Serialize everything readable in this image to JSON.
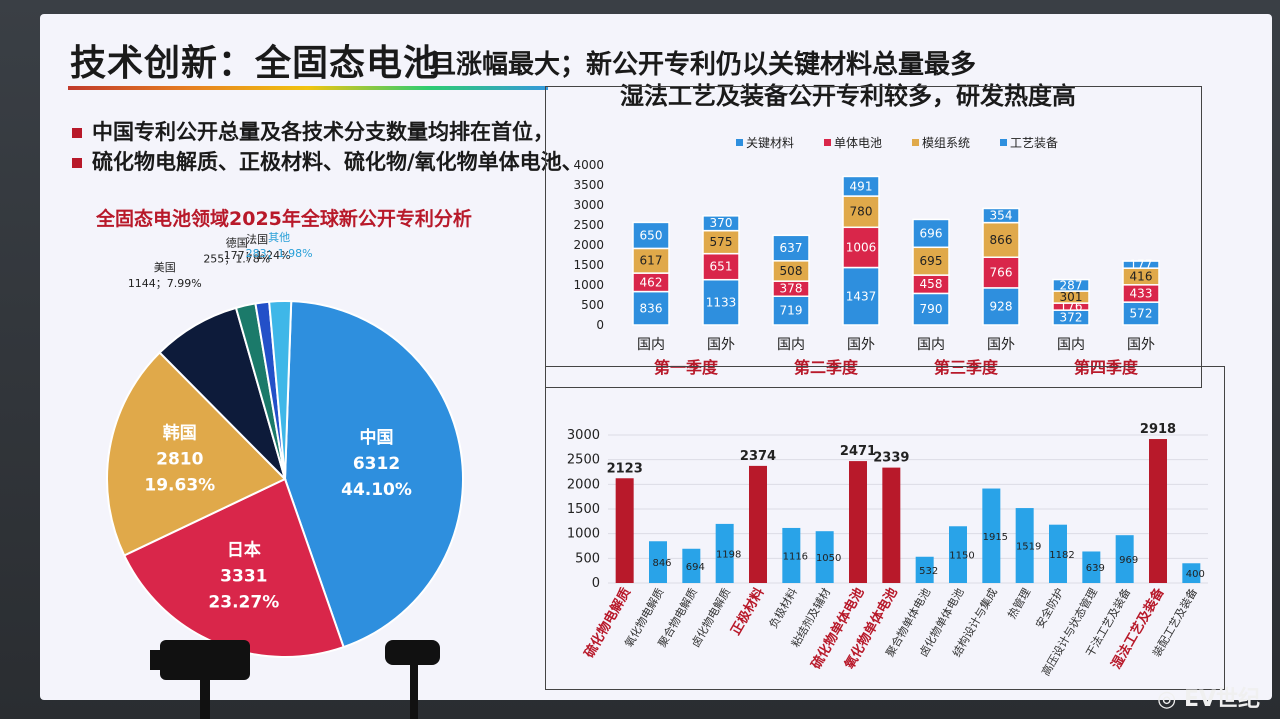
{
  "slide": {
    "title": "技术创新：全固态电池",
    "subtitle": "且涨幅最大；新公开专利仍以关键材料总量最多",
    "subtitle2": "湿法工艺及装备公开专利较多，研发热度高",
    "bullets": [
      "中国专利公开总量及各技术分支数量均排在首位，",
      "硫化物电解质、正极材料、硫化物/氧化物单体电池、"
    ]
  },
  "footer": {
    "watermark": "EV世纪"
  },
  "colors": {
    "accent_red": "#b8192a",
    "blue": "#2e8fde",
    "light_blue": "#29a3e8",
    "gold": "#e0a94a",
    "navy": "#0d1b3a"
  },
  "chart_data": [
    {
      "type": "pie",
      "title": "全固态电池领域2025年全球新公开专利分析",
      "slices": [
        {
          "label": "中国",
          "value": 6312,
          "percent": "44.10%",
          "color": "#2e8fde"
        },
        {
          "label": "日本",
          "value": 3331,
          "percent": "23.27%",
          "color": "#d9264a"
        },
        {
          "label": "韩国",
          "value": 2810,
          "percent": "19.63%",
          "color": "#e0a94a"
        },
        {
          "label": "美国",
          "value": 1144,
          "percent": "7.99%",
          "color": "#0d1b3a"
        },
        {
          "label": "德国",
          "value": 255,
          "percent": "1.78%",
          "color": "#1b7a6a"
        },
        {
          "label": "法国",
          "value": 177,
          "percent": "1.24%",
          "color": "#2350c8"
        },
        {
          "label": "其他",
          "value": 283,
          "percent": "1.98%",
          "color": "#3fb7e8"
        }
      ],
      "label_texts": {
        "中国": [
          "中国",
          "6312",
          "44.10%"
        ],
        "日本": [
          "日本",
          "3331",
          "23.27%"
        ],
        "韩国": [
          "韩国",
          "2810",
          "19.63%"
        ],
        "美国": [
          "美国",
          "1144；7.99%"
        ],
        "德国": [
          "德国",
          "255；1.78%"
        ],
        "法国": [
          "法国",
          "177；1.24%"
        ],
        "其他": [
          "其他",
          "283；1.98%"
        ]
      }
    },
    {
      "type": "bar",
      "stacked": true,
      "categories": [
        "国内",
        "国外",
        "国内",
        "国外",
        "国内",
        "国外",
        "国内",
        "国外"
      ],
      "groups": [
        "第一季度",
        "第二季度",
        "第三季度",
        "第四季度"
      ],
      "series": [
        {
          "name": "关键材料",
          "color": "#2e8fde",
          "values": [
            836,
            1133,
            719,
            1437,
            790,
            928,
            372,
            572
          ]
        },
        {
          "name": "单体电池",
          "color": "#d9264a",
          "values": [
            462,
            651,
            378,
            1006,
            458,
            766,
            176,
            433
          ]
        },
        {
          "name": "模组系统",
          "color": "#e0a94a",
          "values": [
            617,
            575,
            508,
            780,
            695,
            866,
            301,
            416
          ]
        },
        {
          "name": "工艺装备",
          "color": "#2e8fde",
          "values": [
            650,
            370,
            637,
            491,
            696,
            354,
            287,
            177
          ]
        }
      ],
      "yticks": [
        "0",
        "500",
        "1000",
        "1500",
        "2000",
        "2500",
        "3000",
        "3500",
        "4000"
      ],
      "ylim": [
        0,
        4000
      ],
      "legend": "top"
    },
    {
      "type": "bar",
      "categories": [
        "硫化物电解质",
        "氧化物电解质",
        "聚合物电解质",
        "卤化物电解质",
        "正极材料",
        "负极材料",
        "粘结剂及辅材",
        "硫化物单体电池",
        "氧化物单体电池",
        "聚合物单体电池",
        "卤化物单体电池",
        "结构设计与集成",
        "热管理",
        "安全防护",
        "高压设计与状态管理",
        "干法工艺及装备",
        "湿法工艺及装备",
        "装配工艺及装备"
      ],
      "values": [
        2123,
        846,
        694,
        1198,
        2374,
        1116,
        1050,
        2471,
        2339,
        532,
        1150,
        1915,
        1519,
        1182,
        639,
        969,
        2918,
        400
      ],
      "highlight": [
        true,
        false,
        false,
        false,
        true,
        false,
        false,
        true,
        true,
        false,
        false,
        false,
        false,
        false,
        false,
        false,
        true,
        false
      ],
      "value_labels": [
        "2123",
        "846",
        "694",
        "1198",
        "2374",
        "1116",
        "1050",
        "2471",
        "2339",
        "532",
        "1150",
        "1915",
        "1519",
        "1182",
        "639",
        "969",
        "2918",
        "400"
      ],
      "yticks": [
        "0",
        "500",
        "1000",
        "1500",
        "2000",
        "2500",
        "3000"
      ],
      "ylim": [
        0,
        3000
      ]
    }
  ]
}
